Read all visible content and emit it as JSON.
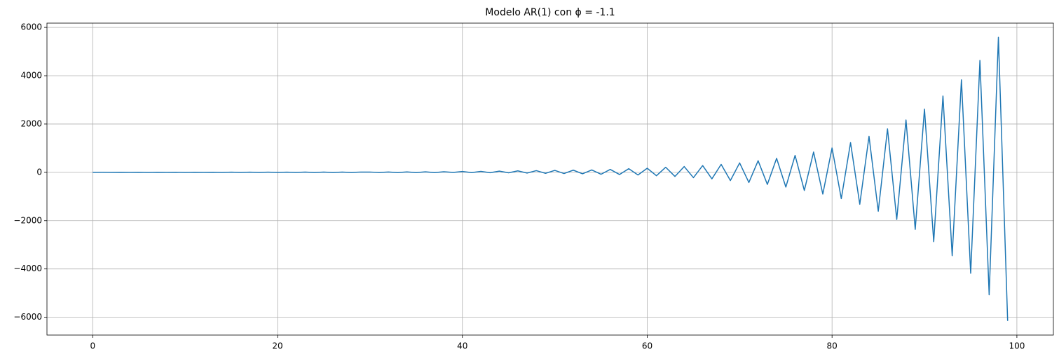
{
  "chart_data": {
    "type": "line",
    "title": "Modelo AR(1) con ϕ = -1.1",
    "x": [
      0,
      1,
      2,
      3,
      4,
      5,
      6,
      7,
      8,
      9,
      10,
      11,
      12,
      13,
      14,
      15,
      16,
      17,
      18,
      19,
      20,
      21,
      22,
      23,
      24,
      25,
      26,
      27,
      28,
      29,
      30,
      31,
      32,
      33,
      34,
      35,
      36,
      37,
      38,
      39,
      40,
      41,
      42,
      43,
      44,
      45,
      46,
      47,
      48,
      49,
      50,
      51,
      52,
      53,
      54,
      55,
      56,
      57,
      58,
      59,
      60,
      61,
      62,
      63,
      64,
      65,
      66,
      67,
      68,
      69,
      70,
      71,
      72,
      73,
      74,
      75,
      76,
      77,
      78,
      79,
      80,
      81,
      82,
      83,
      84,
      85,
      86,
      87,
      88,
      89,
      90,
      91,
      92,
      93,
      94,
      95,
      96,
      97,
      98,
      99
    ],
    "series": [
      {
        "name": "AR(1)",
        "color": "#1f77b4",
        "values": [
          0,
          2,
          -1,
          3,
          -2,
          2,
          -3,
          4,
          -2,
          3,
          -4,
          3,
          -2,
          4,
          -3,
          5,
          -4,
          6,
          -5,
          7,
          -5,
          8,
          -6,
          9,
          -7,
          10,
          -8,
          11,
          -9,
          12,
          12,
          -8,
          14,
          -10,
          16,
          -10,
          20,
          -12,
          25,
          -5,
          35,
          -10,
          40,
          -15,
          50,
          -20,
          60,
          -30,
          70,
          -40,
          80,
          -50,
          90,
          -60,
          100,
          -80,
          120,
          -90,
          150,
          -110,
          170,
          -140,
          210,
          -170,
          240,
          -220,
          280,
          -270,
          330,
          -340,
          390,
          -420,
          480,
          -500,
          580,
          -610,
          700,
          -750,
          840,
          -900,
          1010,
          -1090,
          1230,
          -1320,
          1490,
          -1610,
          1800,
          -1950,
          2170,
          -2360,
          2620,
          -2870,
          3160,
          -3450,
          3830,
          -4180,
          4630,
          -5070,
          5590,
          -6150
        ]
      }
    ],
    "xlim": [
      -4.95,
      103.95
    ],
    "xticks": [
      0,
      20,
      40,
      60,
      80,
      100
    ],
    "ylim": [
      -6737,
      6177
    ],
    "yticks": [
      {
        "value": -6000,
        "label": "−6000"
      },
      {
        "value": -4000,
        "label": "−4000"
      },
      {
        "value": -2000,
        "label": "−2000"
      },
      0,
      2000,
      4000,
      6000
    ],
    "grid": true
  }
}
